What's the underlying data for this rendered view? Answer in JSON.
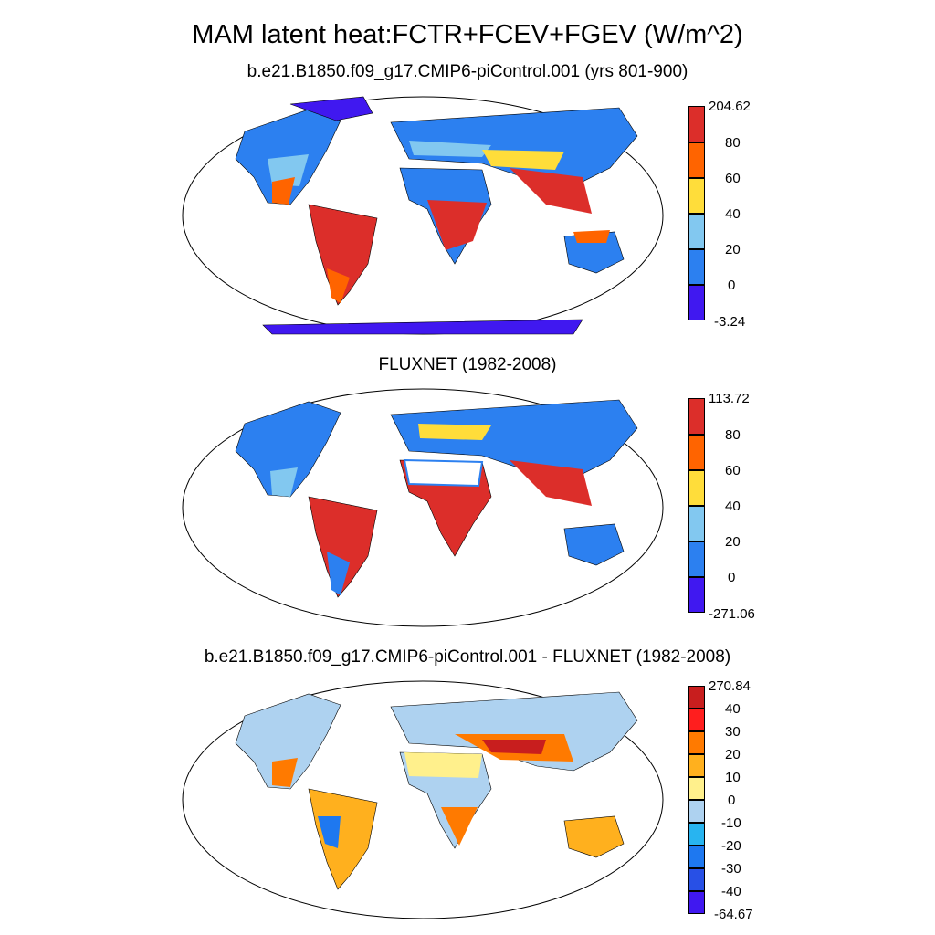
{
  "title": "MAM latent heat:FCTR+FCEV+FGEV (W/m^2)",
  "panels": [
    {
      "subtitle": "b.e21.B1850.f09_g17.CMIP6-piControl.001 (yrs 801-900)",
      "colorbar": {
        "labels": [
          "204.62",
          "80",
          "60",
          "40",
          "20",
          "0",
          "-3.24"
        ],
        "colors": [
          "#dc2e2a",
          "#ff6400",
          "#ffdd3a",
          "#82c8f0",
          "#2c80f0",
          "#4018f0"
        ]
      }
    },
    {
      "subtitle": "FLUXNET (1982-2008)",
      "colorbar": {
        "labels": [
          "113.72",
          "80",
          "60",
          "40",
          "20",
          "0",
          "-271.06"
        ],
        "colors": [
          "#dc2e2a",
          "#ff6400",
          "#ffdd3a",
          "#82c8f0",
          "#2c80f0",
          "#4018f0"
        ]
      }
    },
    {
      "subtitle": "b.e21.B1850.f09_g17.CMIP6-piControl.001 - FLUXNET (1982-2008)",
      "colorbar": {
        "labels": [
          "270.84",
          "40",
          "30",
          "20",
          "10",
          "0",
          "-10",
          "-20",
          "-30",
          "-40",
          "-64.67"
        ],
        "colors": [
          "#c81e1e",
          "#ff1e1e",
          "#ff7a00",
          "#ffb01e",
          "#fff08c",
          "#aed2f0",
          "#28b4f0",
          "#1e78f0",
          "#2850e6",
          "#4018f0"
        ]
      }
    }
  ]
}
